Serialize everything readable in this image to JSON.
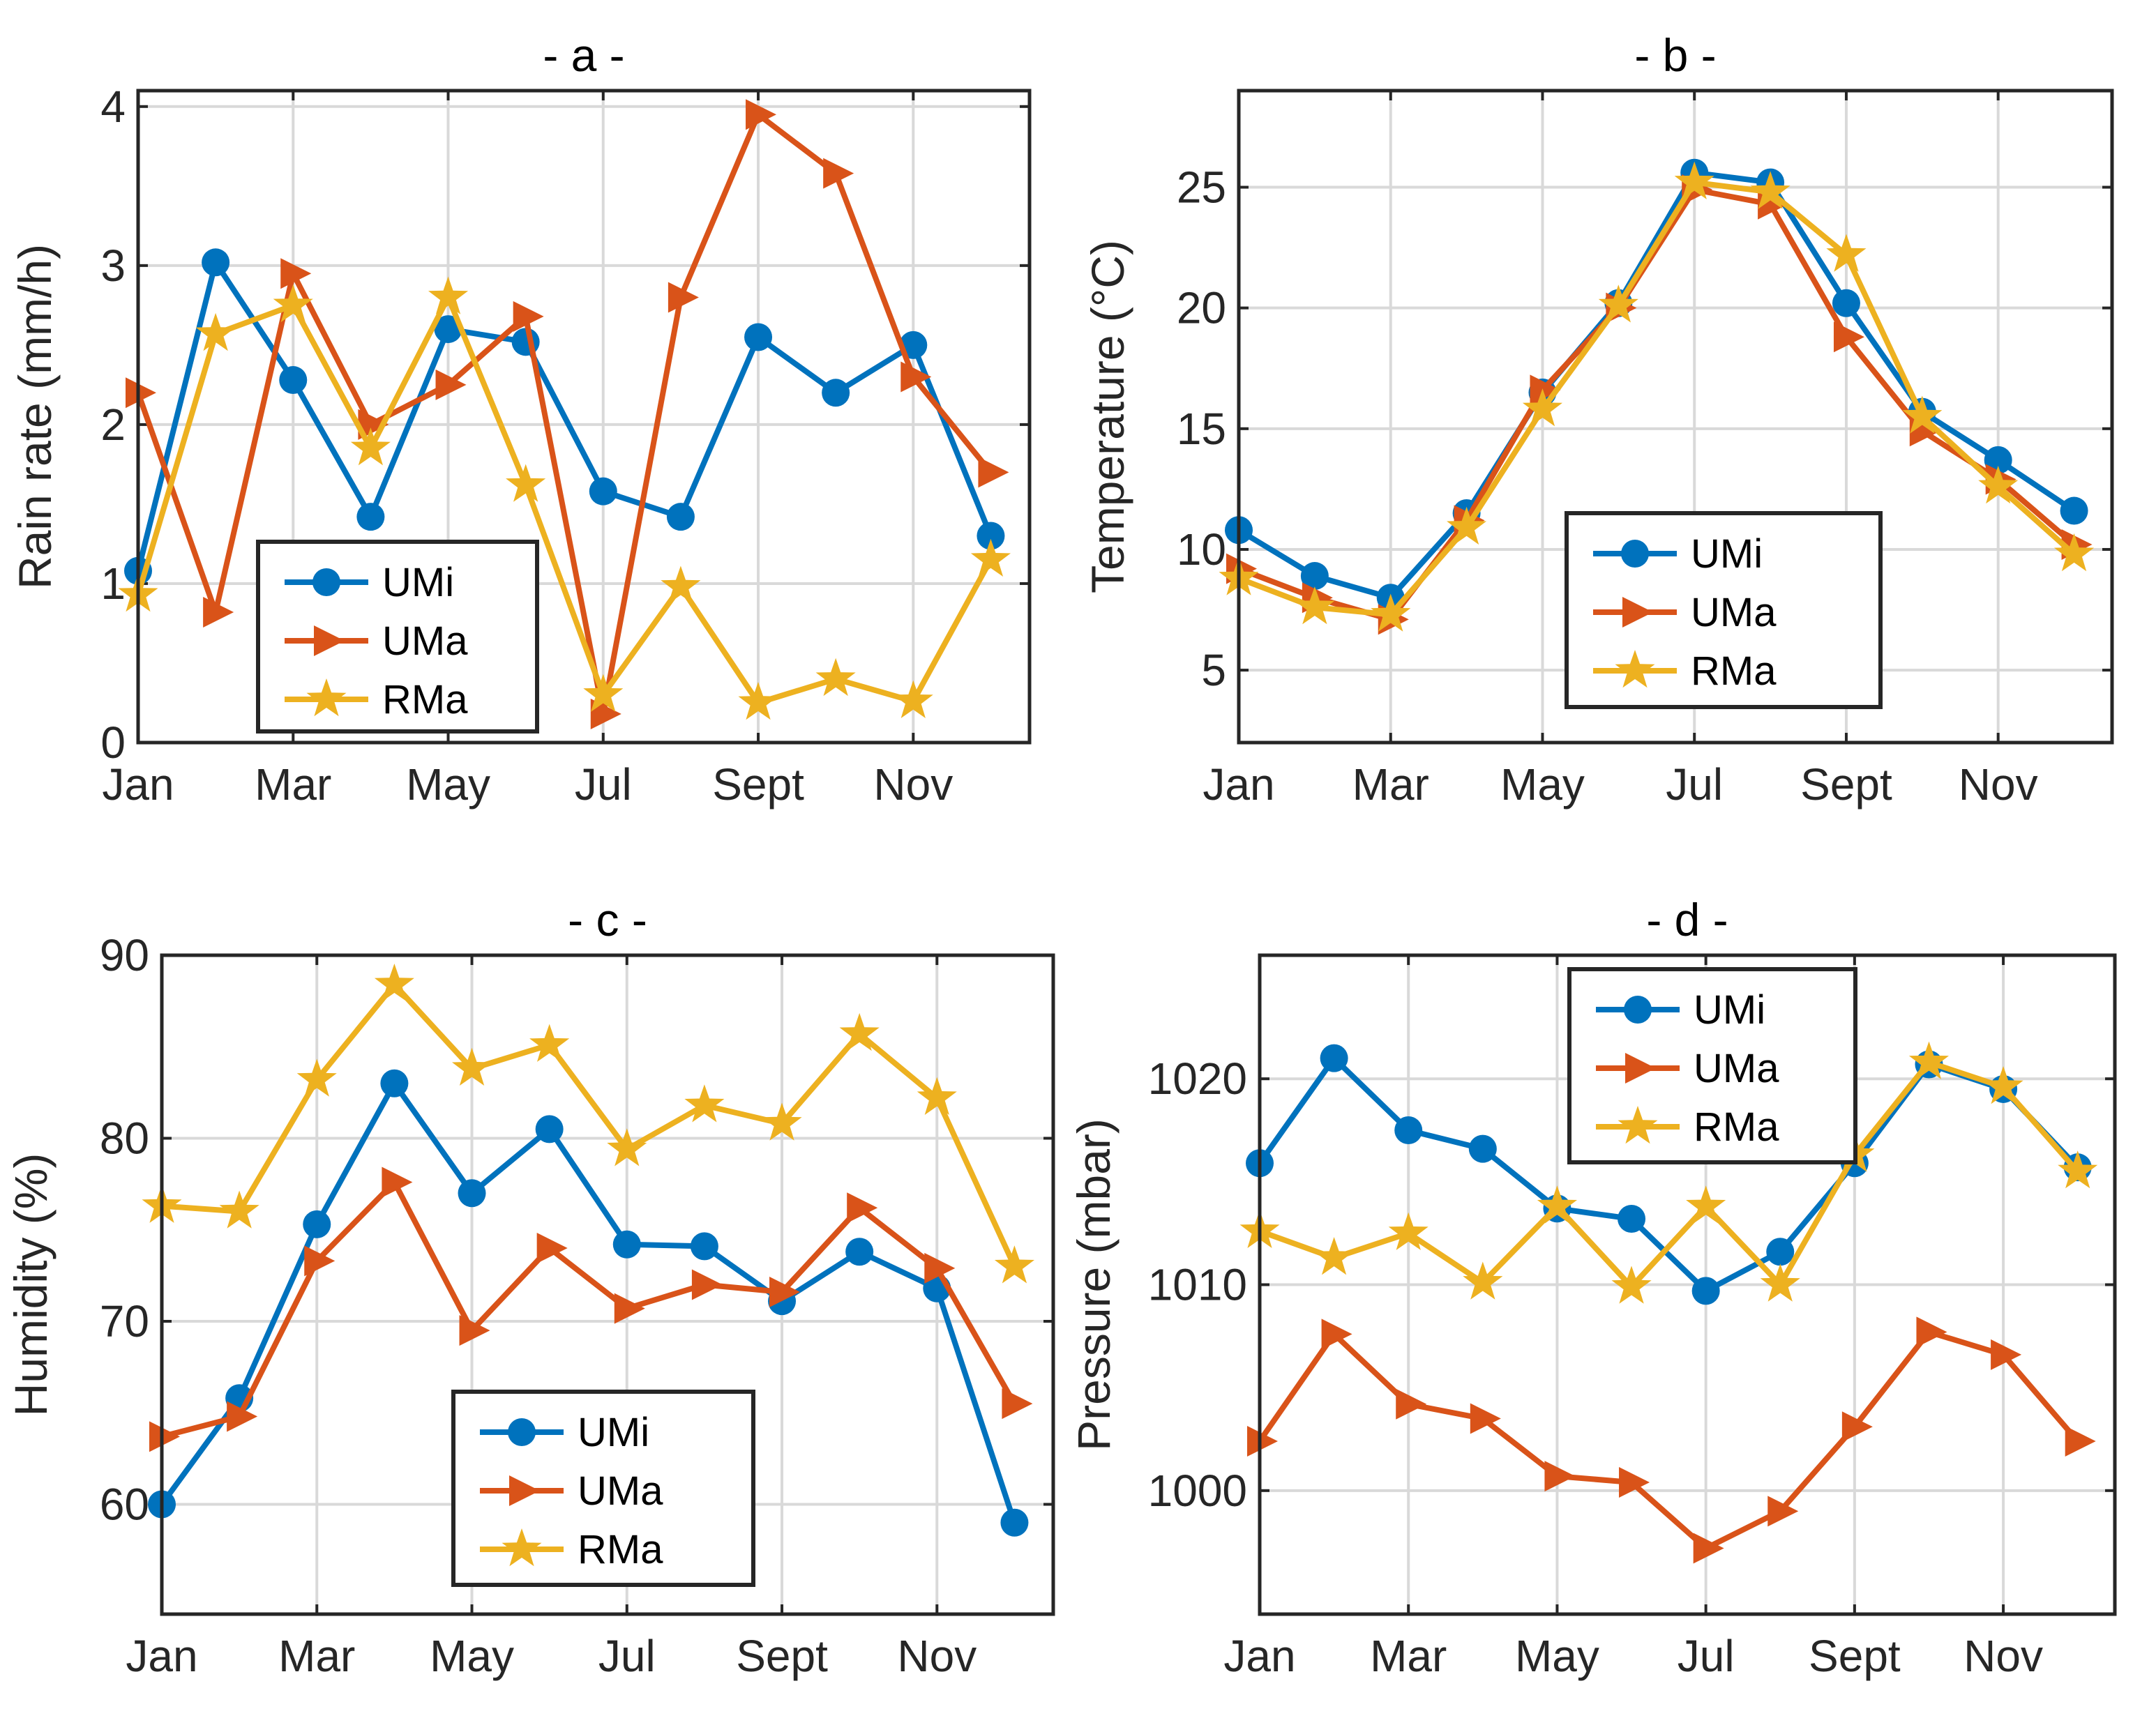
{
  "chart_data": [
    {
      "type": "line",
      "title": "- a -",
      "xlabel": "",
      "ylabel": "Rain rate (mm/h)",
      "x": [
        1,
        2,
        3,
        4,
        5,
        6,
        7,
        8,
        9,
        10,
        11,
        12
      ],
      "xlim": [
        1,
        12.5
      ],
      "xticks": [
        1,
        3,
        5,
        7,
        9,
        11
      ],
      "xticklabels": [
        "Jan",
        "Mar",
        "May",
        "Jul",
        "Sept",
        "Nov"
      ],
      "ylim": [
        0,
        4.1
      ],
      "yticks": [
        0,
        1,
        2,
        3,
        4
      ],
      "yticklabels": [
        "0",
        "1",
        "2",
        "3",
        "4"
      ],
      "grid": true,
      "legend_position": "bottom-left",
      "series": [
        {
          "name": "UMi",
          "color": "#0072BD",
          "marker": "circle",
          "values": [
            1.08,
            3.02,
            2.28,
            1.42,
            2.6,
            2.52,
            1.58,
            1.42,
            2.55,
            2.2,
            2.5,
            1.3
          ]
        },
        {
          "name": "UMa",
          "color": "#D95319",
          "marker": "triangle-right",
          "values": [
            2.2,
            0.82,
            2.95,
            2.0,
            2.25,
            2.68,
            0.18,
            2.8,
            3.95,
            3.58,
            2.3,
            1.7
          ]
        },
        {
          "name": "RMa",
          "color": "#EDB120",
          "marker": "star",
          "values": [
            0.93,
            2.57,
            2.75,
            1.85,
            2.8,
            1.62,
            0.3,
            0.98,
            0.25,
            0.4,
            0.26,
            1.15
          ]
        }
      ]
    },
    {
      "type": "line",
      "title": "- b -",
      "xlabel": "",
      "ylabel": "Temperature (°C)",
      "x": [
        1,
        2,
        3,
        4,
        5,
        6,
        7,
        8,
        9,
        10,
        11,
        12
      ],
      "xlim": [
        1,
        12.5
      ],
      "xticks": [
        1,
        3,
        5,
        7,
        9,
        11
      ],
      "xticklabels": [
        "Jan",
        "Mar",
        "May",
        "Jul",
        "Sept",
        "Nov"
      ],
      "ylim": [
        2,
        29
      ],
      "yticks": [
        5,
        10,
        15,
        20,
        25
      ],
      "yticklabels": [
        "5",
        "10",
        "15",
        "20",
        "25"
      ],
      "grid": true,
      "legend_position": "bottom-right",
      "series": [
        {
          "name": "UMi",
          "color": "#0072BD",
          "marker": "circle",
          "values": [
            10.8,
            8.9,
            8.0,
            11.5,
            16.5,
            20.2,
            25.6,
            25.2,
            20.2,
            15.7,
            13.7,
            11.6
          ]
        },
        {
          "name": "UMa",
          "color": "#D95319",
          "marker": "triangle-right",
          "values": [
            9.2,
            8.0,
            7.1,
            11.2,
            16.6,
            20.0,
            24.9,
            24.3,
            18.8,
            14.9,
            12.9,
            10.2
          ]
        },
        {
          "name": "RMa",
          "color": "#EDB120",
          "marker": "star",
          "values": [
            8.8,
            7.6,
            7.3,
            10.9,
            15.8,
            20.1,
            25.2,
            24.8,
            22.2,
            15.5,
            12.6,
            9.8
          ]
        }
      ]
    },
    {
      "type": "line",
      "title": "- c -",
      "xlabel": "",
      "ylabel": "Humidity (%)",
      "x": [
        1,
        2,
        3,
        4,
        5,
        6,
        7,
        8,
        9,
        10,
        11,
        12
      ],
      "xlim": [
        1,
        12.5
      ],
      "xticks": [
        1,
        3,
        5,
        7,
        9,
        11
      ],
      "xticklabels": [
        "Jan",
        "Mar",
        "May",
        "Jul",
        "Sept",
        "Nov"
      ],
      "ylim": [
        54,
        90
      ],
      "yticks": [
        60,
        70,
        80,
        90
      ],
      "yticklabels": [
        "60",
        "70",
        "80",
        "90"
      ],
      "grid": true,
      "legend_position": "bottom-center",
      "series": [
        {
          "name": "UMi",
          "color": "#0072BD",
          "marker": "circle",
          "values": [
            60.0,
            65.8,
            75.3,
            83.0,
            77.0,
            80.5,
            74.2,
            74.1,
            71.1,
            73.8,
            71.8,
            59.0
          ]
        },
        {
          "name": "UMa",
          "color": "#D95319",
          "marker": "triangle-right",
          "values": [
            63.7,
            64.8,
            73.3,
            77.6,
            69.5,
            74.0,
            70.7,
            72.0,
            71.6,
            76.2,
            72.9,
            65.5
          ]
        },
        {
          "name": "RMa",
          "color": "#EDB120",
          "marker": "star",
          "values": [
            76.3,
            76.0,
            83.2,
            88.4,
            83.8,
            85.1,
            79.4,
            81.8,
            80.8,
            85.7,
            82.2,
            73.0
          ]
        }
      ]
    },
    {
      "type": "line",
      "title": "- d -",
      "xlabel": "",
      "ylabel": "Pressure (mbar)",
      "x": [
        1,
        2,
        3,
        4,
        5,
        6,
        7,
        8,
        9,
        10,
        11,
        12
      ],
      "xlim": [
        1,
        12.5
      ],
      "xticks": [
        1,
        3,
        5,
        7,
        9,
        11
      ],
      "xticklabels": [
        "Jan",
        "Mar",
        "May",
        "Jul",
        "Sept",
        "Nov"
      ],
      "ylim": [
        994,
        1026
      ],
      "yticks": [
        1000,
        1010,
        1020
      ],
      "yticklabels": [
        "1000",
        "1010",
        "1020"
      ],
      "grid": true,
      "legend_position": "top-center",
      "series": [
        {
          "name": "UMi",
          "color": "#0072BD",
          "marker": "circle",
          "values": [
            1015.9,
            1021.0,
            1017.5,
            1016.6,
            1013.7,
            1013.2,
            1009.7,
            1011.6,
            1015.9,
            1020.7,
            1019.5,
            1015.7
          ]
        },
        {
          "name": "UMa",
          "color": "#D95319",
          "marker": "triangle-right",
          "values": [
            1002.4,
            1007.6,
            1004.2,
            1003.5,
            1000.7,
            1000.4,
            997.2,
            999.0,
            1003.1,
            1007.7,
            1006.6,
            1002.4
          ]
        },
        {
          "name": "RMa",
          "color": "#EDB120",
          "marker": "star",
          "values": [
            1012.6,
            1011.3,
            1012.5,
            1010.1,
            1013.8,
            1009.9,
            1013.8,
            1010.0,
            1016.3,
            1020.8,
            1019.6,
            1015.5
          ]
        }
      ]
    }
  ]
}
